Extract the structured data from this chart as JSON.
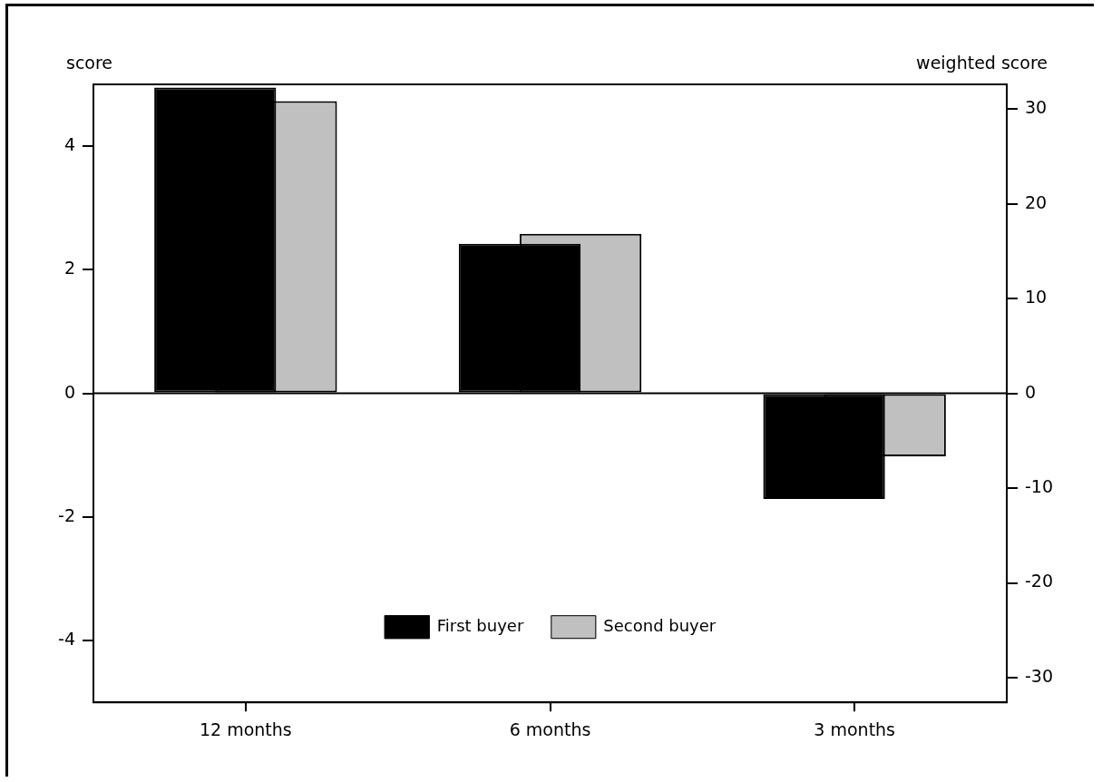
{
  "chart_data": {
    "type": "bar",
    "ylabel": "score",
    "y2label": "weighted score",
    "categories": [
      "12 months",
      "6 months",
      "3 months"
    ],
    "series": [
      {
        "name": "First buyer",
        "color": "#000000",
        "values": [
          4.95,
          2.42,
          -1.71
        ]
      },
      {
        "name": "Second buyer",
        "color": "#c0c0c0",
        "values": [
          4.73,
          2.58,
          -1.02
        ]
      }
    ],
    "ylim": [
      -5,
      5
    ],
    "yticks": [
      -4,
      -2,
      0,
      2,
      4
    ],
    "y2lim": [
      -32.6,
      32.6
    ],
    "y2ticks": [
      -30,
      -20,
      -10,
      0,
      10,
      20,
      30
    ],
    "ref_lines": [
      {
        "axis": "y",
        "value": 0
      }
    ],
    "grid": false,
    "legend": "bottom"
  }
}
